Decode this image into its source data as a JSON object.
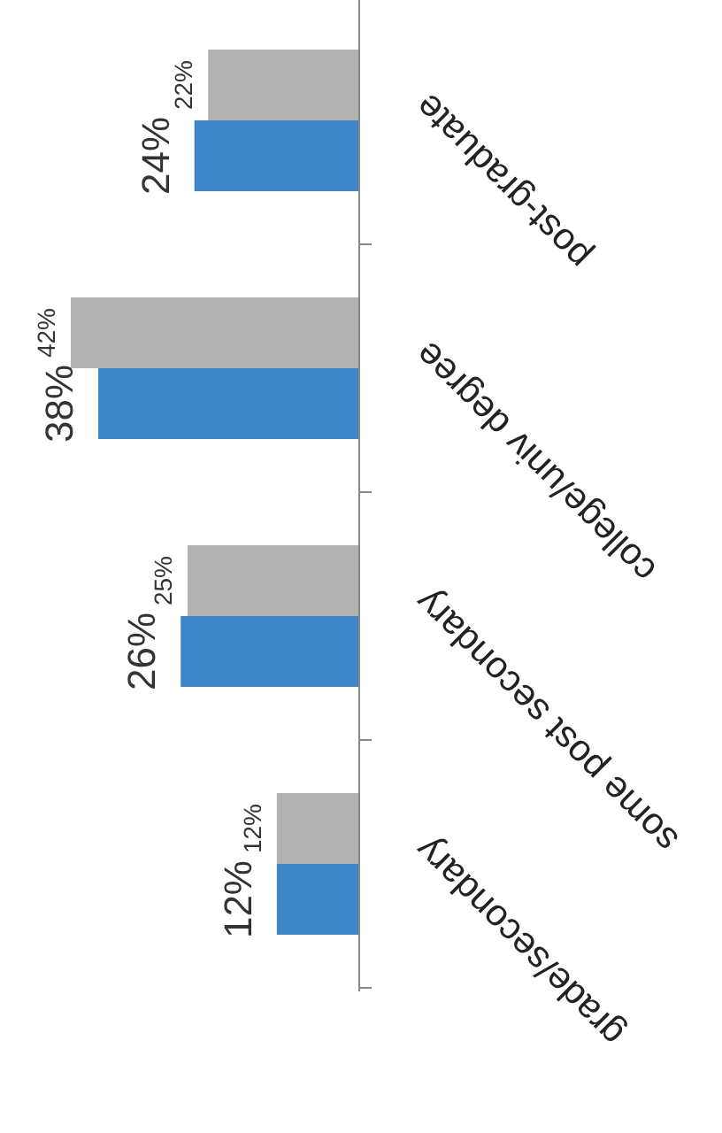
{
  "chart_data": {
    "type": "bar",
    "orientation": "horizontal",
    "categories": [
      "post-graduate",
      "college/univ degree",
      "some post secondary",
      "grade/secondary"
    ],
    "series": [
      {
        "color": "#b2b2b2",
        "values": [
          22,
          42,
          25,
          12
        ],
        "value_labels": [
          "22%",
          "42%",
          "25%",
          "12%"
        ]
      },
      {
        "color": "#3d85c8",
        "values": [
          24,
          38,
          26,
          12
        ],
        "value_labels": [
          "24%",
          "38%",
          "26%",
          "12%"
        ]
      }
    ]
  }
}
